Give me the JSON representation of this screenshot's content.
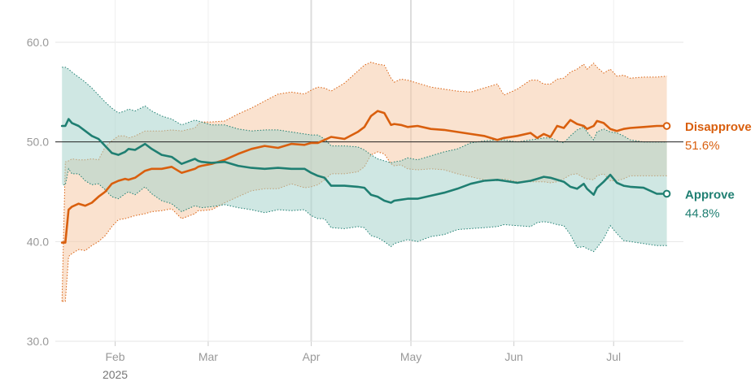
{
  "chart_data": {
    "type": "line",
    "title": "",
    "xlabel": "",
    "ylabel": "",
    "ylim": [
      30,
      60
    ],
    "yticks": [
      {
        "value": 30,
        "label": "30.0"
      },
      {
        "value": 40,
        "label": "40.0"
      },
      {
        "value": 50,
        "label": "50.0"
      },
      {
        "value": 60,
        "label": "60.0"
      }
    ],
    "xlim_day": [
      -7,
      182
    ],
    "xticks": [
      {
        "day": 11,
        "label": "Feb"
      },
      {
        "day": 39,
        "label": "Mar"
      },
      {
        "day": 70,
        "label": "Apr"
      },
      {
        "day": 100,
        "label": "May"
      },
      {
        "day": 131,
        "label": "Jun"
      },
      {
        "day": 161,
        "label": "Jul"
      }
    ],
    "year_label": "2025",
    "reference_line": 50,
    "x_unit": "days since Jan 20, 2025",
    "series": [
      {
        "name": "Disapprove",
        "latest_label": "51.6%",
        "color": "#d95f0e",
        "band_color": "#f5cba7",
        "x": [
          -5,
          -4,
          -3,
          -2,
          0,
          2,
          4,
          6,
          8,
          10,
          12,
          14,
          15,
          17,
          20,
          22,
          25,
          28,
          31,
          35,
          36,
          37,
          40,
          44,
          48,
          52,
          56,
          60,
          64,
          68,
          70,
          72,
          74,
          76,
          80,
          84,
          86,
          88,
          90,
          92,
          94,
          95,
          97,
          99,
          102,
          106,
          110,
          114,
          118,
          122,
          126,
          128,
          132,
          136,
          138,
          140,
          142,
          144,
          146,
          148,
          150,
          152,
          153,
          155,
          156,
          158,
          160,
          162,
          164,
          166,
          170,
          174,
          177
        ],
        "values": [
          39.9,
          39.9,
          43.2,
          43.5,
          43.8,
          43.6,
          43.9,
          44.5,
          45.0,
          45.8,
          46.1,
          46.3,
          46.2,
          46.4,
          47.1,
          47.3,
          47.3,
          47.5,
          46.9,
          47.3,
          47.5,
          47.6,
          47.8,
          48.2,
          48.8,
          49.3,
          49.6,
          49.4,
          49.8,
          49.7,
          49.9,
          49.9,
          50.2,
          50.5,
          50.3,
          51.0,
          51.5,
          52.6,
          53.1,
          52.9,
          51.7,
          51.8,
          51.7,
          51.5,
          51.6,
          51.3,
          51.2,
          51.0,
          50.8,
          50.6,
          50.2,
          50.4,
          50.6,
          50.9,
          50.4,
          50.8,
          50.5,
          51.6,
          51.4,
          52.2,
          51.8,
          51.6,
          51.3,
          51.6,
          52.1,
          51.9,
          51.3,
          51.1,
          51.3,
          51.4,
          51.5,
          51.6,
          51.6
        ],
        "upper": [
          34.0,
          48.0,
          48.1,
          48.3,
          48.2,
          48.2,
          48.3,
          48.2,
          49.5,
          50.1,
          50.6,
          50.6,
          50.4,
          50.6,
          51.1,
          51.1,
          51.1,
          51.2,
          51.1,
          51.4,
          51.8,
          52.0,
          52.0,
          52.1,
          52.8,
          53.4,
          54.1,
          54.8,
          55.0,
          54.8,
          55.2,
          55.5,
          55.4,
          55.1,
          55.9,
          57.1,
          57.7,
          58.0,
          57.8,
          57.7,
          56.4,
          56.0,
          56.3,
          56.2,
          55.9,
          55.5,
          55.3,
          55.1,
          55.0,
          55.4,
          55.8,
          54.7,
          55.3,
          56.2,
          56.2,
          55.8,
          55.8,
          56.3,
          56.4,
          57.0,
          57.3,
          57.8,
          57.3,
          57.9,
          57.5,
          56.9,
          57.3,
          56.6,
          56.7,
          56.4,
          56.5,
          56.5,
          56.6
        ],
        "lower": [
          34.0,
          34.0,
          38.5,
          38.8,
          39.2,
          39.1,
          39.6,
          40.0,
          40.6,
          41.5,
          42.2,
          42.3,
          42.4,
          42.6,
          42.8,
          43.0,
          43.1,
          43.3,
          42.3,
          42.8,
          43.1,
          43.1,
          43.2,
          43.9,
          44.5,
          45.1,
          45.3,
          45.3,
          45.8,
          45.4,
          45.5,
          45.7,
          46.2,
          46.8,
          46.8,
          47.0,
          47.5,
          48.7,
          49.0,
          48.8,
          47.8,
          47.6,
          47.7,
          47.3,
          47.2,
          47.3,
          47.2,
          46.8,
          46.5,
          46.2,
          46.1,
          46.3,
          46.0,
          46.0,
          46.0,
          46.0,
          45.9,
          46.0,
          46.3,
          46.7,
          46.8,
          46.4,
          46.3,
          46.2,
          46.6,
          46.8,
          46.1,
          46.1,
          46.3,
          46.6,
          46.6,
          46.6,
          46.6
        ]
      },
      {
        "name": "Approve",
        "latest_label": "44.8%",
        "color": "#1f7f72",
        "band_color": "#a7d4cc",
        "x": [
          -5,
          -4,
          -3,
          -2,
          0,
          2,
          4,
          6,
          8,
          10,
          12,
          14,
          15,
          17,
          20,
          22,
          25,
          28,
          31,
          35,
          36,
          37,
          40,
          44,
          48,
          52,
          56,
          60,
          64,
          68,
          70,
          72,
          74,
          76,
          80,
          84,
          86,
          88,
          90,
          92,
          94,
          95,
          97,
          99,
          102,
          106,
          110,
          114,
          118,
          122,
          126,
          128,
          132,
          136,
          138,
          140,
          142,
          144,
          146,
          148,
          150,
          152,
          153,
          155,
          156,
          158,
          160,
          162,
          164,
          166,
          170,
          174,
          177
        ],
        "values": [
          51.6,
          51.6,
          52.3,
          51.9,
          51.6,
          51.1,
          50.6,
          50.3,
          49.6,
          48.9,
          48.7,
          49.0,
          49.3,
          49.2,
          49.8,
          49.3,
          48.7,
          48.5,
          47.8,
          48.3,
          48.1,
          48.0,
          47.9,
          48.0,
          47.6,
          47.4,
          47.3,
          47.4,
          47.3,
          47.3,
          46.9,
          46.6,
          46.4,
          45.6,
          45.6,
          45.5,
          45.4,
          44.7,
          44.5,
          44.1,
          43.9,
          44.1,
          44.2,
          44.3,
          44.3,
          44.6,
          44.9,
          45.3,
          45.8,
          46.1,
          46.2,
          46.1,
          45.9,
          46.1,
          46.3,
          46.5,
          46.4,
          46.2,
          46.0,
          45.5,
          45.3,
          45.8,
          45.3,
          44.7,
          45.4,
          46.0,
          46.7,
          45.9,
          45.6,
          45.5,
          45.4,
          44.8,
          44.8
        ],
        "upper": [
          57.5,
          57.5,
          57.3,
          57.0,
          56.5,
          56.0,
          55.4,
          54.7,
          54.0,
          53.4,
          52.9,
          53.1,
          53.3,
          53.1,
          53.6,
          53.1,
          52.6,
          52.3,
          51.7,
          52.2,
          52.1,
          52.0,
          51.7,
          51.7,
          51.3,
          51.1,
          51.2,
          51.2,
          51.0,
          50.8,
          50.7,
          50.7,
          50.3,
          49.6,
          49.6,
          49.5,
          49.2,
          48.7,
          48.3,
          48.1,
          47.9,
          48.0,
          48.1,
          48.4,
          48.2,
          48.6,
          49.0,
          49.3,
          49.9,
          50.1,
          50.2,
          50.2,
          50.0,
          50.2,
          50.3,
          50.4,
          50.4,
          50.1,
          49.9,
          50.6,
          51.2,
          51.5,
          51.0,
          50.2,
          51.0,
          51.3,
          51.0,
          50.9,
          50.6,
          50.2,
          50.0,
          50.0,
          50.0
        ],
        "lower": [
          45.7,
          45.7,
          47.3,
          46.8,
          46.8,
          46.1,
          45.7,
          45.8,
          45.2,
          44.5,
          44.3,
          44.8,
          45.0,
          44.7,
          45.5,
          44.8,
          44.1,
          43.8,
          43.0,
          43.6,
          43.5,
          43.4,
          43.5,
          43.7,
          43.4,
          43.2,
          42.9,
          43.2,
          43.1,
          43.2,
          42.6,
          42.3,
          42.3,
          41.4,
          41.3,
          41.5,
          41.4,
          40.6,
          40.4,
          40.0,
          39.5,
          39.8,
          40.0,
          40.2,
          40.0,
          40.5,
          40.7,
          41.2,
          41.3,
          41.4,
          41.5,
          41.7,
          41.6,
          41.5,
          41.9,
          42.0,
          41.9,
          41.7,
          41.6,
          40.7,
          39.4,
          39.5,
          39.3,
          39.0,
          39.4,
          40.3,
          41.6,
          40.8,
          40.1,
          40.0,
          39.8,
          39.6,
          39.6
        ]
      }
    ]
  }
}
